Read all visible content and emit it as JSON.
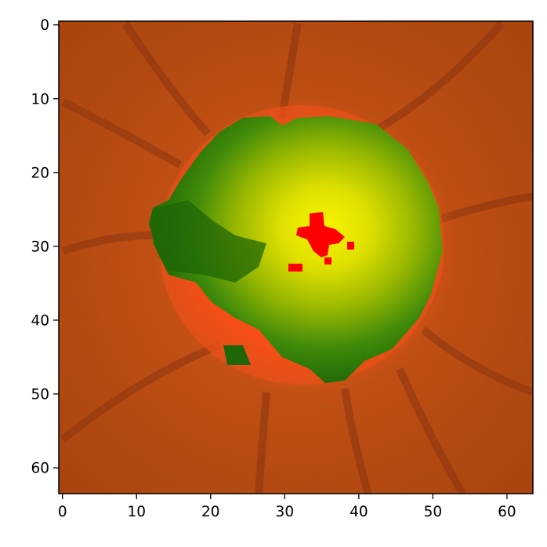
{
  "image": {
    "description_type": "pseudocolor fundus image of optic disc",
    "grid_size": [
      64,
      64
    ],
    "colors": {
      "background_outer": "#b64a10",
      "rim_orange": "#f04a10",
      "dark_green": "#1f6a06",
      "mid_green": "#4a8a10",
      "bright_yellow": "#f0f000",
      "red_cup": "#ff0000",
      "vessel": "#8a3010"
    }
  },
  "axes": {
    "x_ticks": [
      "0",
      "10",
      "20",
      "30",
      "40",
      "50",
      "60"
    ],
    "y_ticks": [
      "0",
      "10",
      "20",
      "30",
      "40",
      "50",
      "60"
    ],
    "xlim": [
      -0.5,
      63.5
    ],
    "ylim": [
      63.5,
      -0.5
    ]
  }
}
